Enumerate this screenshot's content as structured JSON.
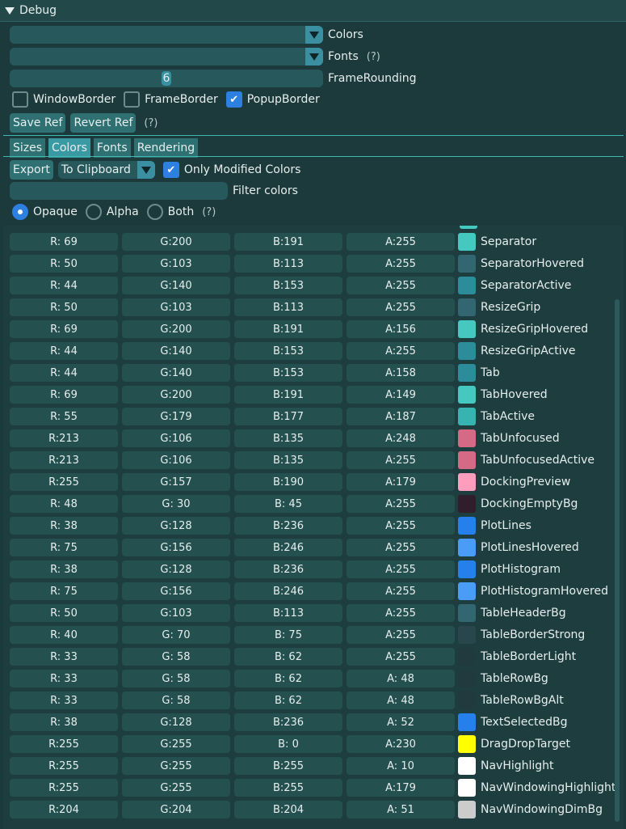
{
  "window": {
    "title": "Debug"
  },
  "style_editor": {
    "colors_combo_label": "Colors",
    "fonts_combo_label": "Fonts",
    "fonts_help": "(?)",
    "frame_rounding_value": "6",
    "frame_rounding_label": "FrameRounding",
    "window_border_label": "WindowBorder",
    "frame_border_label": "FrameBorder",
    "popup_border_label": "PopupBorder",
    "window_border_checked": false,
    "frame_border_checked": false,
    "popup_border_checked": true,
    "save_ref_label": "Save Ref",
    "revert_ref_label": "Revert Ref",
    "ref_help": "(?)"
  },
  "tabs": [
    {
      "label": "Sizes",
      "active": false
    },
    {
      "label": "Colors",
      "active": true
    },
    {
      "label": "Fonts",
      "active": false
    },
    {
      "label": "Rendering",
      "active": false
    }
  ],
  "colors_tab": {
    "export_label": "Export",
    "export_target": "To Clipboard",
    "only_modified_label": "Only Modified Colors",
    "only_modified_checked": true,
    "filter_label": "Filter colors",
    "mode_opaque": "Opaque",
    "mode_alpha": "Alpha",
    "mode_both": "Both",
    "mode_help": "(?)",
    "selected_mode": "Opaque"
  },
  "colors": [
    {
      "r": "R: 69",
      "g": "G:200",
      "b": "B:191",
      "a": "A:255",
      "name": "Separator",
      "hex": "#45c8bf"
    },
    {
      "r": "R: 50",
      "g": "G:103",
      "b": "B:113",
      "a": "A:255",
      "name": "SeparatorHovered",
      "hex": "#326771"
    },
    {
      "r": "R: 44",
      "g": "G:140",
      "b": "B:153",
      "a": "A:255",
      "name": "SeparatorActive",
      "hex": "#2c8c99"
    },
    {
      "r": "R: 50",
      "g": "G:103",
      "b": "B:113",
      "a": "A:255",
      "name": "ResizeGrip",
      "hex": "#326771"
    },
    {
      "r": "R: 69",
      "g": "G:200",
      "b": "B:191",
      "a": "A:156",
      "name": "ResizeGripHovered",
      "hex": "#45c8bf"
    },
    {
      "r": "R: 44",
      "g": "G:140",
      "b": "B:153",
      "a": "A:255",
      "name": "ResizeGripActive",
      "hex": "#2c8c99"
    },
    {
      "r": "R: 44",
      "g": "G:140",
      "b": "B:153",
      "a": "A:158",
      "name": "Tab",
      "hex": "#2c8c99"
    },
    {
      "r": "R: 69",
      "g": "G:200",
      "b": "B:191",
      "a": "A:149",
      "name": "TabHovered",
      "hex": "#45c8bf"
    },
    {
      "r": "R: 55",
      "g": "G:179",
      "b": "B:177",
      "a": "A:187",
      "name": "TabActive",
      "hex": "#37b3b1"
    },
    {
      "r": "R:213",
      "g": "G:106",
      "b": "B:135",
      "a": "A:248",
      "name": "TabUnfocused",
      "hex": "#d56a87"
    },
    {
      "r": "R:213",
      "g": "G:106",
      "b": "B:135",
      "a": "A:255",
      "name": "TabUnfocusedActive",
      "hex": "#d56a87"
    },
    {
      "r": "R:255",
      "g": "G:157",
      "b": "B:190",
      "a": "A:179",
      "name": "DockingPreview",
      "hex": "#ff9dbe"
    },
    {
      "r": "R: 48",
      "g": "G: 30",
      "b": "B: 45",
      "a": "A:255",
      "name": "DockingEmptyBg",
      "hex": "#301e2d"
    },
    {
      "r": "R: 38",
      "g": "G:128",
      "b": "B:236",
      "a": "A:255",
      "name": "PlotLines",
      "hex": "#2680ec"
    },
    {
      "r": "R: 75",
      "g": "G:156",
      "b": "B:246",
      "a": "A:255",
      "name": "PlotLinesHovered",
      "hex": "#4b9cf6"
    },
    {
      "r": "R: 38",
      "g": "G:128",
      "b": "B:236",
      "a": "A:255",
      "name": "PlotHistogram",
      "hex": "#2680ec"
    },
    {
      "r": "R: 75",
      "g": "G:156",
      "b": "B:246",
      "a": "A:255",
      "name": "PlotHistogramHovered",
      "hex": "#4b9cf6"
    },
    {
      "r": "R: 50",
      "g": "G:103",
      "b": "B:113",
      "a": "A:255",
      "name": "TableHeaderBg",
      "hex": "#326771"
    },
    {
      "r": "R: 40",
      "g": "G: 70",
      "b": "B: 75",
      "a": "A:255",
      "name": "TableBorderStrong",
      "hex": "#28464b"
    },
    {
      "r": "R: 33",
      "g": "G: 58",
      "b": "B: 62",
      "a": "A:255",
      "name": "TableBorderLight",
      "hex": "#213a3e"
    },
    {
      "r": "R: 33",
      "g": "G: 58",
      "b": "B: 62",
      "a": "A: 48",
      "name": "TableRowBg",
      "hex": "#213a3e"
    },
    {
      "r": "R: 33",
      "g": "G: 58",
      "b": "B: 62",
      "a": "A: 48",
      "name": "TableRowBgAlt",
      "hex": "#213a3e"
    },
    {
      "r": "R: 38",
      "g": "G:128",
      "b": "B:236",
      "a": "A: 52",
      "name": "TextSelectedBg",
      "hex": "#2680ec"
    },
    {
      "r": "R:255",
      "g": "G:255",
      "b": "B:  0",
      "a": "A:230",
      "name": "DragDropTarget",
      "hex": "#ffff00"
    },
    {
      "r": "R:255",
      "g": "G:255",
      "b": "B:255",
      "a": "A: 10",
      "name": "NavHighlight",
      "hex": "#ffffff"
    },
    {
      "r": "R:255",
      "g": "G:255",
      "b": "B:255",
      "a": "A:179",
      "name": "NavWindowingHighlight",
      "hex": "#ffffff"
    },
    {
      "r": "R:204",
      "g": "G:204",
      "b": "B:204",
      "a": "A: 51",
      "name": "NavWindowingDimBg",
      "hex": "#cccccc"
    }
  ]
}
